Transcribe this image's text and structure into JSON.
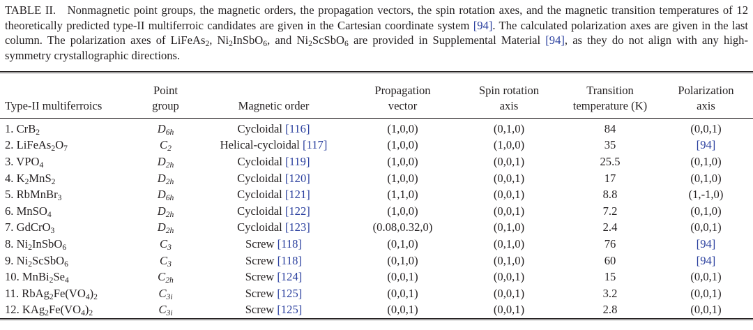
{
  "caption": [
    {
      "t": "TABLE II. Nonmagnetic point groups, the magnetic orders, the propagation vectors, the spin rotation axes, and the magnetic transition temperatures of 12 theoretically predicted type-II multiferroic candidates are given in the Cartesian coordinate system "
    },
    {
      "ref": "[94]"
    },
    {
      "t": ". The calculated polarization axes are given in the last column. The polarization axes of LiFeAs"
    },
    {
      "sub": "2"
    },
    {
      "t": ", Ni"
    },
    {
      "sub": "2"
    },
    {
      "t": "InSbO"
    },
    {
      "sub": "6"
    },
    {
      "t": ", and Ni"
    },
    {
      "sub": "2"
    },
    {
      "t": "ScSbO"
    },
    {
      "sub": "6"
    },
    {
      "t": " are provided in Supplemental Material "
    },
    {
      "ref": "[94]"
    },
    {
      "t": ", as they do not align with any high-symmetry crystallographic directions."
    }
  ],
  "table": {
    "headers": [
      [
        "Type-II multiferroics"
      ],
      [
        "Point",
        "group"
      ],
      [
        "Magnetic order"
      ],
      [
        "Propagation",
        "vector"
      ],
      [
        "Spin rotation",
        "axis"
      ],
      [
        "Transition",
        "temperature (K)"
      ],
      [
        "Polarization",
        "axis"
      ]
    ],
    "rows": [
      {
        "name": [
          {
            "t": "1. CrB"
          },
          {
            "sub": "2"
          }
        ],
        "group": {
          "letter": "D",
          "sub": "6h"
        },
        "order": "Cycloidal",
        "ref": "[116]",
        "vector": "(1,0,0)",
        "spin": "(0,1,0)",
        "temperature": 84,
        "polarization": [
          {
            "t": "(0,0,1)"
          }
        ]
      },
      {
        "name": [
          {
            "t": "2. LiFeAs"
          },
          {
            "sub": "2"
          },
          {
            "t": "O"
          },
          {
            "sub": "7"
          }
        ],
        "group": {
          "letter": "C",
          "sub": "2"
        },
        "order": "Helical-cycloidal",
        "ref": "[117]",
        "vector": "(1,0,0)",
        "spin": "(1,0,0)",
        "temperature": 35,
        "polarization": [
          {
            "ref": "[94]"
          }
        ]
      },
      {
        "name": [
          {
            "t": "3. VPO"
          },
          {
            "sub": "4"
          }
        ],
        "group": {
          "letter": "D",
          "sub": "2h"
        },
        "order": "Cycloidal",
        "ref": "[119]",
        "vector": "(1,0,0)",
        "spin": "(0,0,1)",
        "temperature": 25.5,
        "polarization": [
          {
            "t": "(0,1,0)"
          }
        ]
      },
      {
        "name": [
          {
            "t": "4. K"
          },
          {
            "sub": "2"
          },
          {
            "t": "MnS"
          },
          {
            "sub": "2"
          }
        ],
        "group": {
          "letter": "D",
          "sub": "2h"
        },
        "order": "Cycloidal",
        "ref": "[120]",
        "vector": "(1,0,0)",
        "spin": "(0,0,1)",
        "temperature": 17,
        "polarization": [
          {
            "t": "(0,1,0)"
          }
        ]
      },
      {
        "name": [
          {
            "t": "5. RbMnBr"
          },
          {
            "sub": "3"
          }
        ],
        "group": {
          "letter": "D",
          "sub": "6h"
        },
        "order": "Cycloidal",
        "ref": "[121]",
        "vector": "(1,1,0)",
        "spin": "(0,0,1)",
        "temperature": 8.8,
        "polarization": [
          {
            "t": "(1,-1,0)"
          }
        ]
      },
      {
        "name": [
          {
            "t": "6. MnSO"
          },
          {
            "sub": "4"
          }
        ],
        "group": {
          "letter": "D",
          "sub": "2h"
        },
        "order": "Cycloidal",
        "ref": "[122]",
        "vector": "(1,0,0)",
        "spin": "(0,0,1)",
        "temperature": 7.2,
        "polarization": [
          {
            "t": "(0,1,0)"
          }
        ]
      },
      {
        "name": [
          {
            "t": "7. GdCrO"
          },
          {
            "sub": "3"
          }
        ],
        "group": {
          "letter": "D",
          "sub": "2h"
        },
        "order": "Cycloidal",
        "ref": "[123]",
        "vector": "(0.08,0.32,0)",
        "spin": "(0,1,0)",
        "temperature": 2.4,
        "polarization": [
          {
            "t": "(0,0,1)"
          }
        ]
      },
      {
        "name": [
          {
            "t": "8. Ni"
          },
          {
            "sub": "2"
          },
          {
            "t": "InSbO"
          },
          {
            "sub": "6"
          }
        ],
        "group": {
          "letter": "C",
          "sub": "3"
        },
        "order": "Screw",
        "ref": "[118]",
        "vector": "(0,1,0)",
        "spin": "(0,1,0)",
        "temperature": 76,
        "polarization": [
          {
            "ref": "[94]"
          }
        ]
      },
      {
        "name": [
          {
            "t": "9. Ni"
          },
          {
            "sub": "2"
          },
          {
            "t": "ScSbO"
          },
          {
            "sub": "6"
          }
        ],
        "group": {
          "letter": "C",
          "sub": "3"
        },
        "order": "Screw",
        "ref": "[118]",
        "vector": "(0,1,0)",
        "spin": "(0,1,0)",
        "temperature": 60,
        "polarization": [
          {
            "ref": "[94]"
          }
        ]
      },
      {
        "name": [
          {
            "t": "10. MnBi"
          },
          {
            "sub": "2"
          },
          {
            "t": "Se"
          },
          {
            "sub": "4"
          }
        ],
        "group": {
          "letter": "C",
          "sub": "2h"
        },
        "order": "Screw",
        "ref": "[124]",
        "vector": "(0,0,1)",
        "spin": "(0,0,1)",
        "temperature": 15,
        "polarization": [
          {
            "t": "(0,0,1)"
          }
        ]
      },
      {
        "name": [
          {
            "t": "11. RbAg"
          },
          {
            "sub": "2"
          },
          {
            "t": "Fe(VO"
          },
          {
            "sub": "4"
          },
          {
            "t": ")"
          },
          {
            "sub": "2"
          }
        ],
        "group": {
          "letter": "C",
          "sub": "3i"
        },
        "order": "Screw",
        "ref": "[125]",
        "vector": "(0,0,1)",
        "spin": "(0,0,1)",
        "temperature": 3.2,
        "polarization": [
          {
            "t": "(0,0,1)"
          }
        ]
      },
      {
        "name": [
          {
            "t": "12. KAg"
          },
          {
            "sub": "2"
          },
          {
            "t": "Fe(VO"
          },
          {
            "sub": "4"
          },
          {
            "t": ")"
          },
          {
            "sub": "2"
          }
        ],
        "group": {
          "letter": "C",
          "sub": "3i"
        },
        "order": "Screw",
        "ref": "[125]",
        "vector": "(0,0,1)",
        "spin": "(0,0,1)",
        "temperature": 2.8,
        "polarization": [
          {
            "t": "(0,0,1)"
          }
        ]
      }
    ]
  }
}
